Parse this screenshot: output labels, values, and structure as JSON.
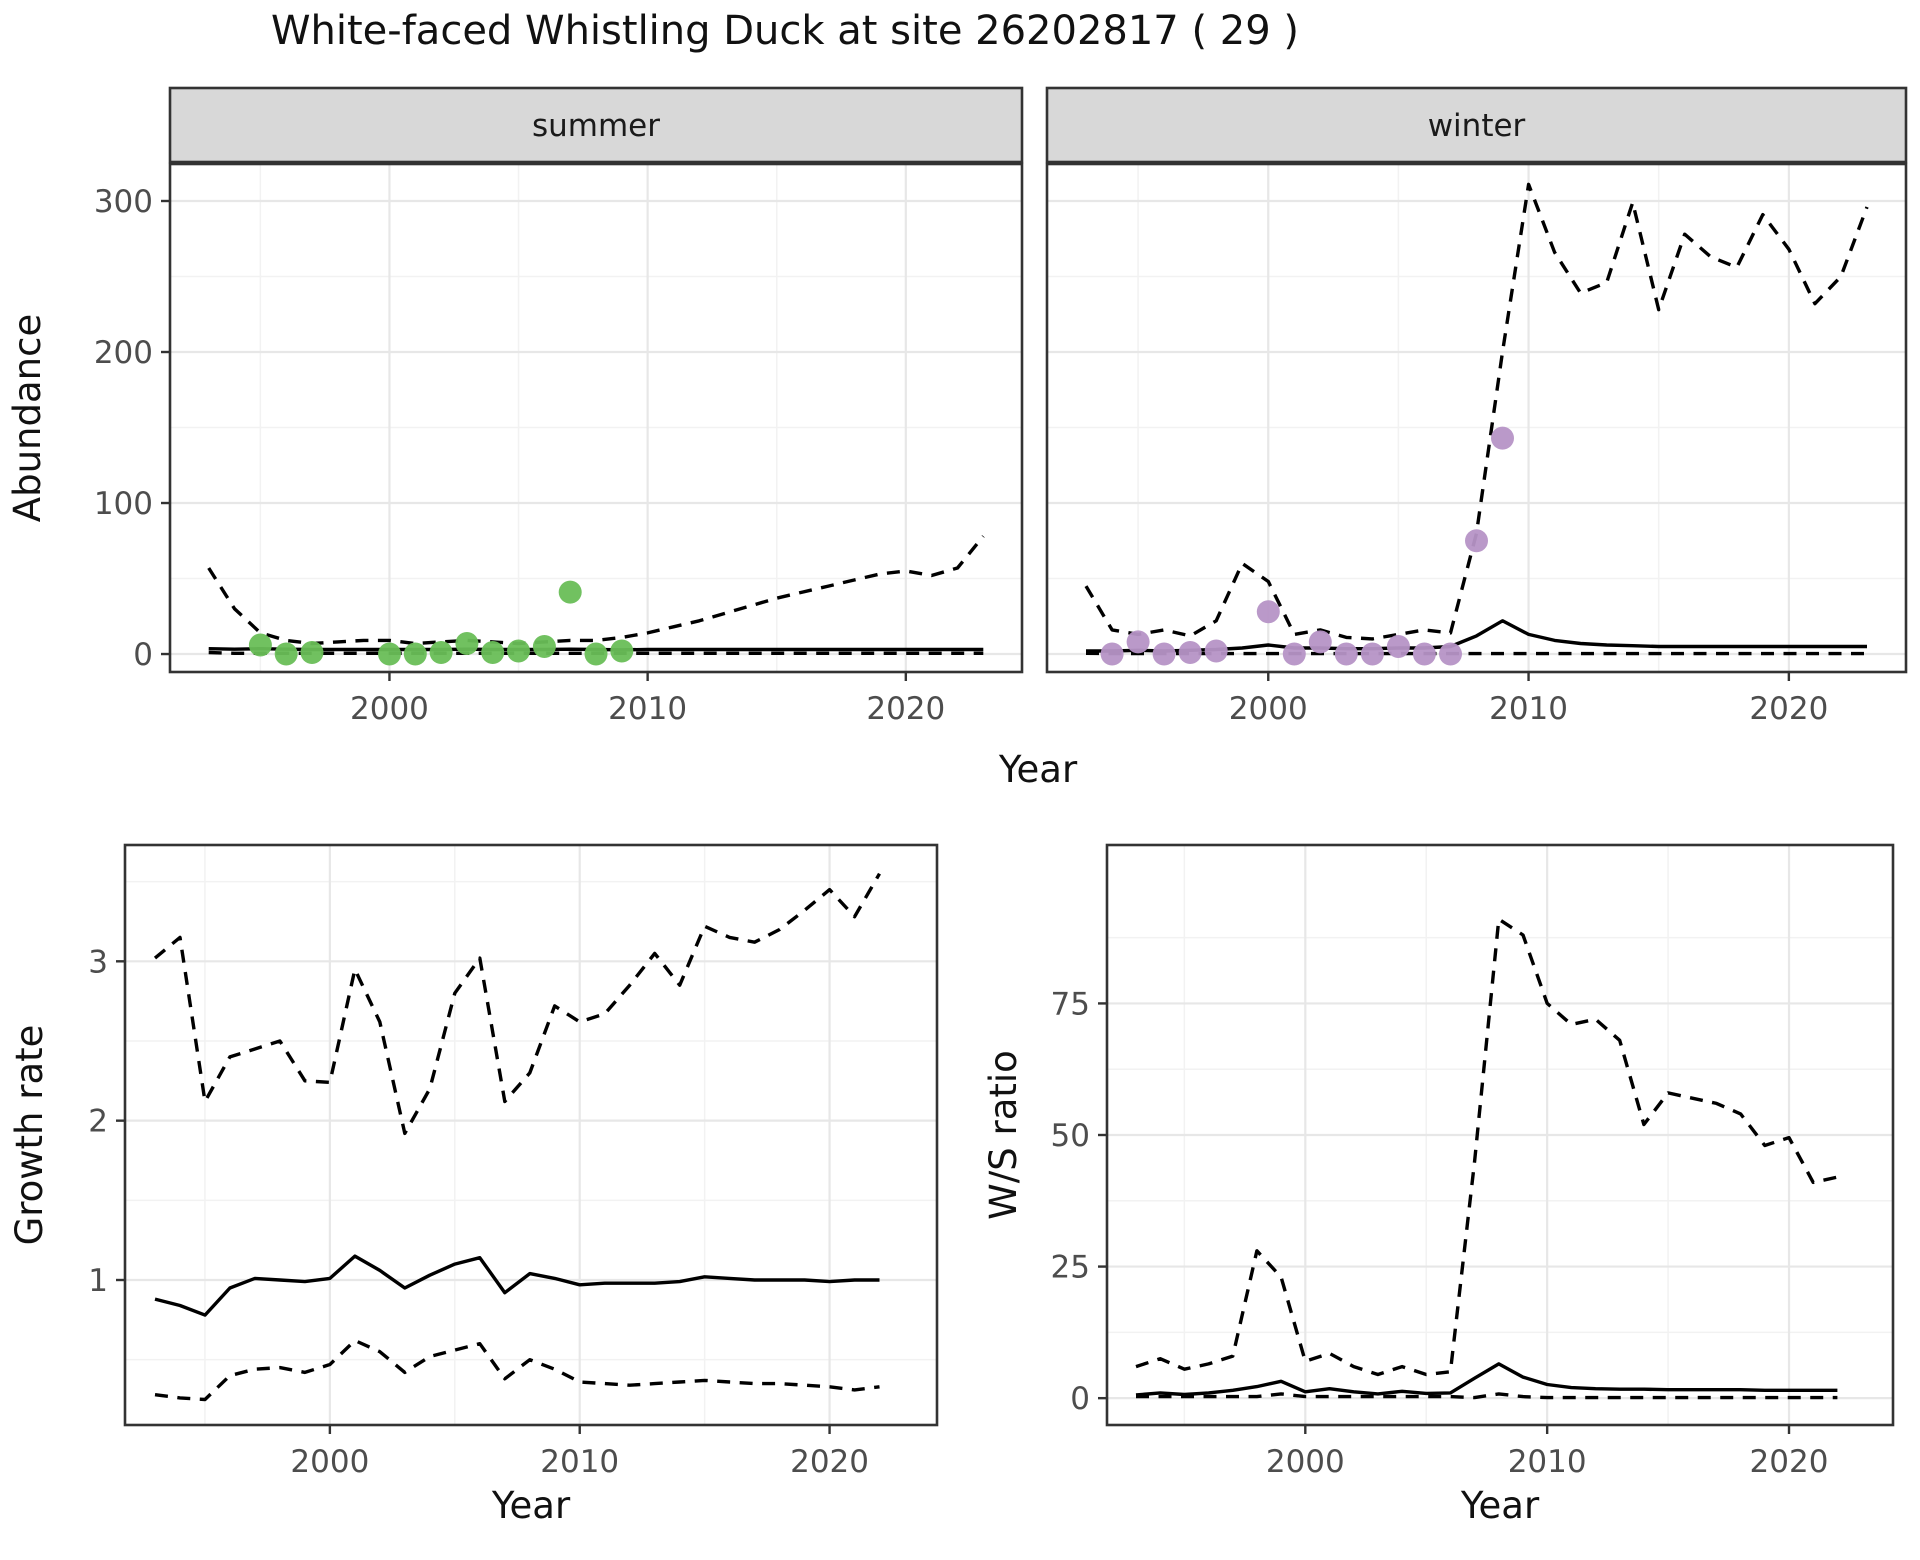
{
  "title": "White-faced Whistling Duck at site 26202817 ( 29 )",
  "colors": {
    "summer_points": "#69be57",
    "winter_points": "#b694c6",
    "line": "#000000",
    "strip_bg": "#d8d8d8",
    "panel_border": "#333333",
    "grid_major": "#e7e7e7",
    "grid_minor": "#f2f2f2",
    "tick_text": "#4d4d4d",
    "axis_title": "#111111"
  },
  "chart_data": [
    {
      "id": "abundance-summer",
      "type": "line",
      "facet_label": "summer",
      "xlabel": "Year",
      "ylabel": "Abundance",
      "x": [
        1993,
        1994,
        1995,
        1996,
        1997,
        1998,
        1999,
        2000,
        2001,
        2002,
        2003,
        2004,
        2005,
        2006,
        2007,
        2008,
        2009,
        2010,
        2011,
        2012,
        2013,
        2014,
        2015,
        2016,
        2017,
        2018,
        2019,
        2020,
        2021,
        2022,
        2023
      ],
      "series": [
        {
          "name": "median",
          "style": "solid",
          "values": [
            3.5,
            3.2,
            3.5,
            3.2,
            3,
            3,
            3,
            3,
            3,
            3,
            3.2,
            3,
            3,
            3,
            3.2,
            3,
            2.8,
            3,
            3,
            3,
            3,
            3,
            3,
            3,
            3,
            3,
            3,
            3,
            3,
            3,
            3
          ]
        },
        {
          "name": "upper-ci",
          "style": "dashed",
          "values": [
            57,
            30,
            14,
            9,
            7,
            8,
            9,
            9,
            7,
            8,
            9,
            8,
            7,
            8,
            9,
            9,
            11,
            14,
            18,
            22,
            27,
            32,
            37,
            41,
            45,
            49,
            53,
            55,
            52,
            57,
            78
          ]
        },
        {
          "name": "lower-ci",
          "style": "dashed",
          "values": [
            1,
            0.5,
            0.5,
            0.5,
            0.5,
            0.5,
            0.5,
            0.5,
            0.5,
            0.5,
            0.5,
            0.5,
            0.5,
            0.5,
            0.5,
            0.5,
            0.5,
            0.5,
            0.5,
            0.5,
            0.5,
            0.5,
            0.5,
            0.5,
            0.5,
            0.5,
            0.5,
            0.5,
            0.5,
            0.5,
            0.5
          ]
        }
      ],
      "points": {
        "name": "observed-counts-summer",
        "color": "#69be57",
        "x": [
          1995,
          1996,
          1997,
          2000,
          2001,
          2002,
          2003,
          2004,
          2005,
          2006,
          2007,
          2008,
          2009
        ],
        "y": [
          6,
          0,
          1,
          0,
          0,
          1,
          7,
          1,
          2,
          5,
          41,
          0,
          2
        ]
      },
      "xlim": [
        1991.5,
        2024.5
      ],
      "ylim": [
        -11.9,
        324.5
      ],
      "xticks": [
        2000,
        2010,
        2020
      ],
      "xminor": [
        1995,
        2005,
        2015
      ],
      "yticks": [
        0,
        100,
        200,
        300
      ],
      "yminor": [
        50,
        150,
        250
      ],
      "grid": true
    },
    {
      "id": "abundance-winter",
      "type": "line",
      "facet_label": "winter",
      "xlabel": "Year",
      "ylabel": "Abundance",
      "x": [
        1993,
        1994,
        1995,
        1996,
        1997,
        1998,
        1999,
        2000,
        2001,
        2002,
        2003,
        2004,
        2005,
        2006,
        2007,
        2008,
        2009,
        2010,
        2011,
        2012,
        2013,
        2014,
        2015,
        2016,
        2017,
        2018,
        2019,
        2020,
        2021,
        2022,
        2023
      ],
      "series": [
        {
          "name": "median",
          "style": "solid",
          "values": [
            2,
            2,
            2.5,
            2,
            2.5,
            3,
            4,
            6,
            4,
            4,
            3.5,
            3.5,
            4,
            4,
            5,
            12,
            22,
            13,
            9,
            7,
            6,
            5.5,
            5,
            5,
            5,
            5,
            5,
            5,
            5,
            5,
            5
          ]
        },
        {
          "name": "upper-ci",
          "style": "dashed",
          "values": [
            45,
            16,
            13,
            16,
            12,
            22,
            60,
            48,
            13,
            16,
            11,
            10,
            13,
            16,
            14,
            80,
            200,
            311,
            266,
            239,
            246,
            299,
            228,
            278,
            263,
            256,
            291,
            268,
            232,
            250,
            296
          ]
        },
        {
          "name": "lower-ci",
          "style": "dashed",
          "values": [
            0.5,
            0.3,
            0.3,
            0.3,
            0.3,
            0.3,
            0.3,
            0.3,
            0.3,
            0.3,
            0.3,
            0.3,
            0.3,
            0.3,
            0.3,
            0.3,
            0.3,
            0.3,
            0.3,
            0.3,
            0.3,
            0.3,
            0.3,
            0.3,
            0.3,
            0.3,
            0.3,
            0.3,
            0.3,
            0.3,
            0.3
          ]
        }
      ],
      "points": {
        "name": "observed-counts-winter",
        "color": "#b694c6",
        "x": [
          1994,
          1995,
          1996,
          1997,
          1998,
          2000,
          2001,
          2002,
          2003,
          2004,
          2005,
          2006,
          2007,
          2008,
          2009
        ],
        "y": [
          0,
          8,
          0,
          1,
          2,
          28,
          0,
          8,
          0,
          0,
          5,
          0,
          0,
          75,
          143
        ]
      },
      "xlim": [
        1991.5,
        2024.5
      ],
      "ylim": [
        -11.9,
        324.5
      ],
      "xticks": [
        2000,
        2010,
        2020
      ],
      "xminor": [
        1995,
        2005,
        2015
      ],
      "yticks": [
        0,
        100,
        200,
        300
      ],
      "yminor": [
        50,
        150,
        250
      ],
      "grid": true
    },
    {
      "id": "growth-rate",
      "type": "line",
      "facet_label": "",
      "xlabel": "Year",
      "ylabel": "Growth rate",
      "x": [
        1993,
        1994,
        1995,
        1996,
        1997,
        1998,
        1999,
        2000,
        2001,
        2002,
        2003,
        2004,
        2005,
        2006,
        2007,
        2008,
        2009,
        2010,
        2011,
        2012,
        2013,
        2014,
        2015,
        2016,
        2017,
        2018,
        2019,
        2020,
        2021,
        2022
      ],
      "series": [
        {
          "name": "median",
          "style": "solid",
          "values": [
            0.88,
            0.84,
            0.78,
            0.95,
            1.01,
            1.0,
            0.99,
            1.01,
            1.15,
            1.06,
            0.95,
            1.03,
            1.1,
            1.14,
            0.92,
            1.04,
            1.01,
            0.97,
            0.98,
            0.98,
            0.98,
            0.99,
            1.02,
            1.01,
            1.0,
            1.0,
            1.0,
            0.99,
            1.0,
            1.0
          ]
        },
        {
          "name": "upper-ci",
          "style": "dashed",
          "values": [
            3.02,
            3.15,
            2.12,
            2.4,
            2.45,
            2.5,
            2.25,
            2.24,
            2.95,
            2.62,
            1.92,
            2.2,
            2.8,
            3.02,
            2.12,
            2.3,
            2.72,
            2.62,
            2.67,
            2.85,
            3.05,
            2.85,
            3.22,
            3.15,
            3.12,
            3.2,
            3.32,
            3.45,
            3.28,
            3.55
          ]
        },
        {
          "name": "lower-ci",
          "style": "dashed",
          "values": [
            0.28,
            0.26,
            0.25,
            0.4,
            0.44,
            0.45,
            0.42,
            0.47,
            0.62,
            0.55,
            0.42,
            0.52,
            0.56,
            0.6,
            0.38,
            0.5,
            0.44,
            0.36,
            0.35,
            0.34,
            0.35,
            0.36,
            0.37,
            0.36,
            0.35,
            0.35,
            0.34,
            0.33,
            0.31,
            0.33
          ]
        }
      ],
      "points": null,
      "xlim": [
        1991.8,
        2024.3
      ],
      "ylim": [
        0.09,
        3.73
      ],
      "xticks": [
        2000,
        2010,
        2020
      ],
      "xminor": [
        1995,
        2005,
        2015
      ],
      "yticks": [
        1,
        2,
        3
      ],
      "yminor": [
        0.5,
        1.5,
        2.5,
        3.5
      ],
      "grid": true
    },
    {
      "id": "ws-ratio",
      "type": "line",
      "facet_label": "",
      "xlabel": "Year",
      "ylabel": "W/S ratio",
      "x": [
        1993,
        1994,
        1995,
        1996,
        1997,
        1998,
        1999,
        2000,
        2001,
        2002,
        2003,
        2004,
        2005,
        2006,
        2007,
        2008,
        2009,
        2010,
        2011,
        2012,
        2013,
        2014,
        2015,
        2016,
        2017,
        2018,
        2019,
        2020,
        2021,
        2022
      ],
      "series": [
        {
          "name": "median",
          "style": "solid",
          "values": [
            0.6,
            1.0,
            0.7,
            1.0,
            1.5,
            2.2,
            3.2,
            1.2,
            1.8,
            1.2,
            0.8,
            1.3,
            0.9,
            1.0,
            3.8,
            6.5,
            4.0,
            2.6,
            2.0,
            1.8,
            1.7,
            1.7,
            1.6,
            1.6,
            1.6,
            1.6,
            1.5,
            1.5,
            1.5,
            1.5
          ]
        },
        {
          "name": "upper-ci",
          "style": "dashed",
          "values": [
            6,
            7.5,
            5.5,
            6.5,
            8,
            28,
            23,
            7,
            8.5,
            6,
            4.5,
            6,
            4.5,
            5,
            45,
            91,
            88,
            75,
            71,
            72,
            68,
            52,
            58,
            57,
            56,
            54,
            48,
            49.5,
            41,
            42
          ]
        },
        {
          "name": "lower-ci",
          "style": "dashed",
          "values": [
            0.3,
            0.3,
            0.3,
            0.3,
            0.3,
            0.3,
            0.8,
            0.3,
            0.3,
            0.3,
            0.3,
            0.3,
            0.3,
            0.3,
            0.1,
            0.8,
            0.3,
            0.1,
            0.1,
            0.1,
            0.1,
            0.1,
            0.1,
            0.1,
            0.1,
            0.1,
            0.1,
            0.1,
            0.1,
            0.1
          ]
        }
      ],
      "points": null,
      "xlim": [
        1991.8,
        2024.3
      ],
      "ylim": [
        -5.1,
        105.1
      ],
      "xticks": [
        2000,
        2010,
        2020
      ],
      "xminor": [
        1995,
        2005,
        2015
      ],
      "yticks": [
        0,
        25,
        50,
        75
      ],
      "yminor": [
        12.5,
        37.5,
        62.5,
        87.5
      ],
      "grid": true
    }
  ]
}
